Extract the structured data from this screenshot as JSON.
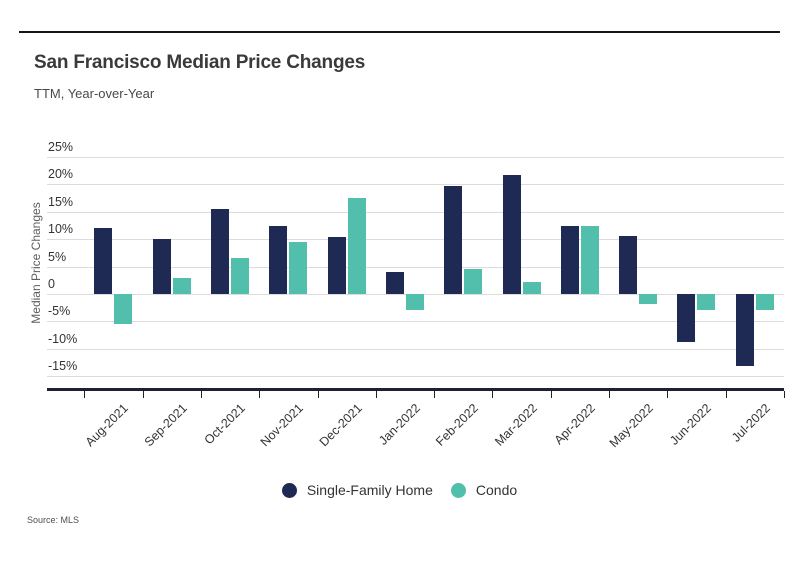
{
  "header": {
    "title": "San Francisco Median Price Changes",
    "subtitle": "TTM, Year-over-Year"
  },
  "footer": {
    "source": "Source: MLS"
  },
  "colors": {
    "single_family": "#1f2a54",
    "condo": "#52bfad",
    "gridline": "#dcdcdc",
    "axis_line": "#1c2230",
    "top_rule": "#15151b",
    "text_dark": "#333333",
    "text_muted": "#5d5d5d"
  },
  "chart_data": {
    "type": "bar",
    "title": "San Francisco Median Price Changes",
    "subtitle": "TTM, Year-over-Year",
    "xlabel": "",
    "ylabel": "Median Price Changes",
    "categories": [
      "Aug-2021",
      "Sep-2021",
      "Oct-2021",
      "Nov-2021",
      "Dec-2021",
      "Jan-2022",
      "Feb-2022",
      "Mar-2022",
      "Apr-2022",
      "May-2022",
      "Jun-2022",
      "Jul-2022"
    ],
    "series": [
      {
        "name": "Single-Family Home",
        "color_key": "single_family",
        "values": [
          12.0,
          10.1,
          15.6,
          12.5,
          10.4,
          4.1,
          19.7,
          21.8,
          12.5,
          10.6,
          -8.8,
          -13.1
        ]
      },
      {
        "name": "Condo",
        "color_key": "condo",
        "values": [
          -5.5,
          3.0,
          6.6,
          9.5,
          17.6,
          -3.0,
          4.5,
          2.2,
          12.5,
          -1.9,
          -2.9,
          -2.9
        ]
      }
    ],
    "y_ticks": [
      {
        "label": "25%",
        "value": 25
      },
      {
        "label": "20%",
        "value": 20
      },
      {
        "label": "15%",
        "value": 15
      },
      {
        "label": "10%",
        "value": 10
      },
      {
        "label": "5%",
        "value": 5
      },
      {
        "label": "0",
        "value": 0
      },
      {
        "label": "-5%",
        "value": -5
      },
      {
        "label": "-10%",
        "value": -10
      },
      {
        "label": "-15%",
        "value": -15
      }
    ],
    "ylim": [
      -17.5,
      28.3
    ],
    "grid": true,
    "legend_position": "bottom"
  }
}
